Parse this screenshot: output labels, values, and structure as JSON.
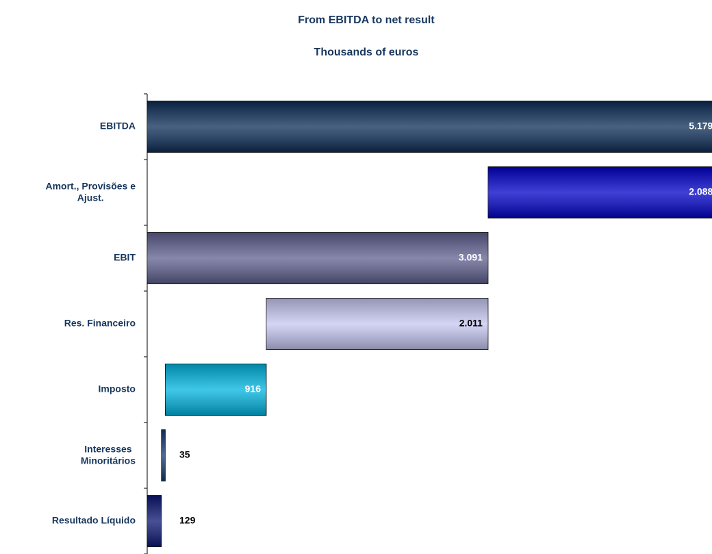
{
  "chart_data": {
    "type": "waterfall",
    "title": "From EBITDA to net result",
    "subtitle": "Thousands of euros",
    "categories": [
      "EBITDA",
      "Amort., Provisões e\nAjust.",
      "EBIT",
      "Res. Financeiro",
      "Imposto",
      "Interesses\nMinoritários",
      "Resultado Líquido"
    ],
    "values": [
      5179,
      -2088,
      3091,
      -2011,
      -916,
      -35,
      129
    ],
    "value_labels": [
      "5.179",
      "2.088",
      "3.091",
      "2.011",
      "916",
      "35",
      "129"
    ],
    "colors": [
      "#0c2d57",
      "#0000c8",
      "#5f5f8f",
      "#c6c6f2",
      "#00b4e0",
      "#17386b",
      "#0a1670"
    ]
  }
}
